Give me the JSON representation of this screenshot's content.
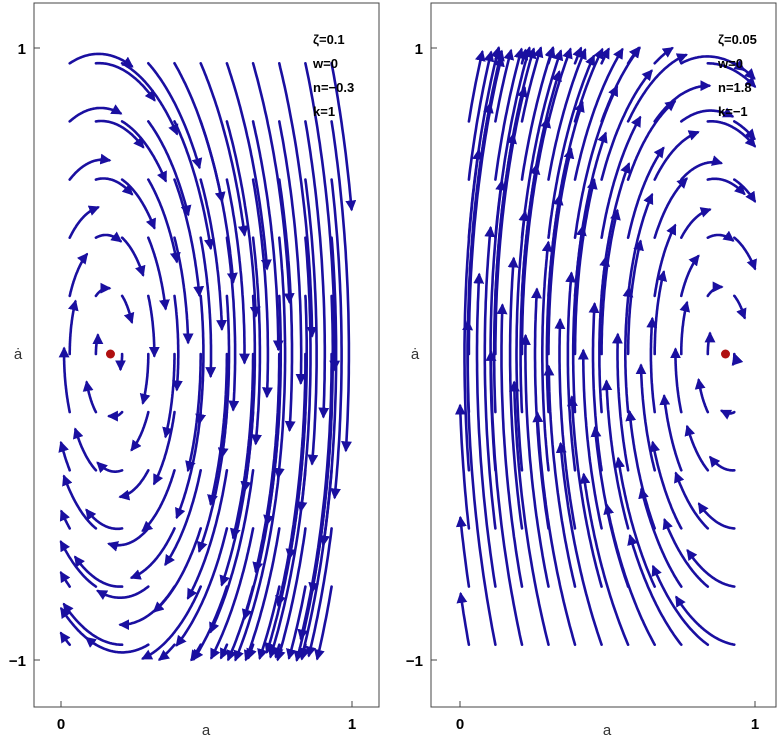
{
  "chart_data": [
    {
      "type": "streamplot",
      "xlabel": "a",
      "ylabel": "ȧ",
      "xticks": [
        "0",
        "1"
      ],
      "yticks": [
        "1",
        "−1"
      ],
      "xlim": [
        -0.08,
        1.08
      ],
      "ylim": [
        -1.08,
        1.08
      ],
      "params": [
        "ζ=0.1",
        "w=0",
        "n=−0.3",
        "k=1"
      ],
      "fixed_point": {
        "x": 0.17,
        "y": 0
      },
      "domain_xmax": 1,
      "stream_color": "#1a0fa0",
      "point_color": "#b01010"
    },
    {
      "type": "streamplot",
      "xlabel": "a",
      "ylabel": "ȧ",
      "xticks": [
        "0",
        "1"
      ],
      "yticks": [
        "1",
        "−1"
      ],
      "xlim": [
        -0.08,
        1.08
      ],
      "ylim": [
        -1.08,
        1.08
      ],
      "params": [
        "ζ=0.05",
        "w=0",
        "n=1.8",
        "k=−1"
      ],
      "fixed_point": {
        "x": 0.9,
        "y": 0
      },
      "domain_xmax": 1,
      "stream_color": "#1a0fa0",
      "point_color": "#b01010"
    }
  ]
}
